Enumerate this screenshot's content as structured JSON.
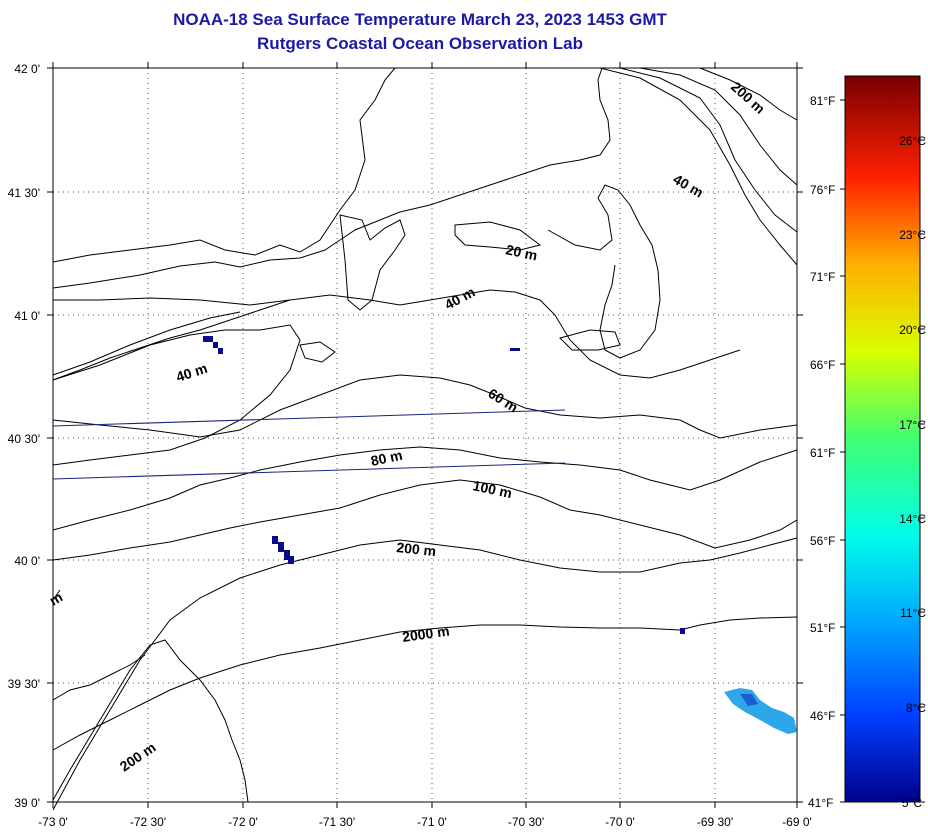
{
  "title": "NOAA-18 Sea Surface Temperature March 23, 2023 1453 GMT",
  "subtitle": "Rutgers Coastal Ocean Observation Lab",
  "lat_labels": [
    "42 0'",
    "41 30'",
    "41 0'",
    "40 30'",
    "40 0'",
    "39 30'",
    "39 0'"
  ],
  "lon_labels": [
    "-73 0'",
    "-72 30'",
    "-72 0'",
    "-71 30'",
    "-71 0'",
    "-70 30'",
    "-70 0'",
    "-69 30'",
    "-69 0'"
  ],
  "fahrenheit_labels": [
    "81°F",
    "76°F",
    "71°F",
    "66°F",
    "61°F",
    "56°F",
    "51°F",
    "46°F",
    "41°F"
  ],
  "celsius_labels": [
    "26°C",
    "23°C",
    "20°C",
    "17°C",
    "14°C",
    "11°C",
    "8°C",
    "5°C"
  ],
  "contour_labels": [
    "200 m",
    "40 m",
    "20 m",
    "40 m",
    "40 m",
    "60 m",
    "80 m",
    "100 m",
    "200 m",
    "2000 m",
    "200 m",
    "m"
  ],
  "colors": {
    "title": "#1a1aa6",
    "contour": "#000000",
    "track_line": "#1a237e",
    "sst_cold": "#0a0a8c",
    "sst_warm": "#2ea7e8"
  },
  "icons": {
    "colorbar": "sst-colorbar"
  }
}
